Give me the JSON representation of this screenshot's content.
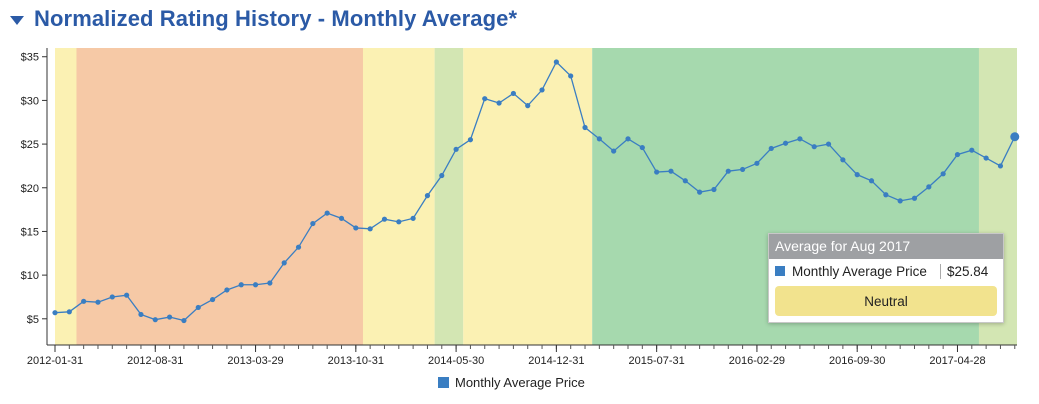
{
  "header": {
    "title": "Normalized Rating History - Monthly Average*"
  },
  "chart_data": {
    "type": "line",
    "title": "Normalized Rating History - Monthly Average*",
    "xlabel": "",
    "ylabel": "",
    "ylim": [
      2,
      36
    ],
    "grid": false,
    "y_tick_labels": [
      "$5",
      "$10",
      "$15",
      "$20",
      "$25",
      "$30",
      "$35"
    ],
    "y_tick_values": [
      5,
      10,
      15,
      20,
      25,
      30,
      35
    ],
    "x_tick_labels": [
      "2012-01-31",
      "2012-08-31",
      "2013-03-29",
      "2013-10-31",
      "2014-05-30",
      "2014-12-31",
      "2015-07-31",
      "2016-02-29",
      "2016-09-30",
      "2017-04-28"
    ],
    "x_tick_month_index": [
      0,
      7,
      14,
      21,
      28,
      35,
      42,
      49,
      56,
      63
    ],
    "x_start": "2012-01-31",
    "x_end": "2017-08-31",
    "series": [
      {
        "name": "Monthly Average Price",
        "color": "#3a7ec2",
        "values": [
          5.7,
          5.8,
          7.0,
          6.9,
          7.5,
          7.7,
          5.5,
          4.9,
          5.2,
          4.8,
          6.3,
          7.2,
          8.3,
          8.9,
          8.9,
          9.1,
          11.4,
          13.2,
          15.9,
          17.1,
          16.5,
          15.4,
          15.3,
          16.4,
          16.1,
          16.5,
          19.1,
          21.4,
          24.4,
          25.5,
          30.2,
          29.7,
          30.8,
          29.4,
          31.2,
          34.4,
          32.8,
          26.9,
          25.6,
          24.2,
          25.6,
          24.6,
          21.8,
          21.9,
          20.8,
          19.5,
          19.8,
          21.9,
          22.1,
          22.8,
          24.5,
          25.1,
          25.6,
          24.7,
          25.0,
          23.2,
          21.5,
          20.8,
          19.2,
          18.5,
          18.8,
          20.1,
          21.6,
          23.8,
          24.3,
          23.4,
          22.5,
          25.84
        ]
      }
    ],
    "rating_bands": [
      {
        "from": 0,
        "to": 1.5,
        "color": "#fbf1b3"
      },
      {
        "from": 1.5,
        "to": 21.5,
        "color": "#f6c9a6"
      },
      {
        "from": 21.5,
        "to": 26.5,
        "color": "#fbf1b3"
      },
      {
        "from": 26.5,
        "to": 28.5,
        "color": "#d3e6b3"
      },
      {
        "from": 28.5,
        "to": 37.5,
        "color": "#fbf1b3"
      },
      {
        "from": 37.5,
        "to": 64.5,
        "color": "#a6d9ae"
      },
      {
        "from": 64.5,
        "to": 67.5,
        "color": "#d3e6b3"
      }
    ],
    "legend": {
      "position": "bottom-center",
      "label": "Monthly Average Price"
    },
    "tooltip": {
      "title": "Average for Aug 2017",
      "label": "Monthly Average Price",
      "value": "$25.84",
      "rating": "Neutral",
      "rating_color": "#f2e38e"
    }
  }
}
